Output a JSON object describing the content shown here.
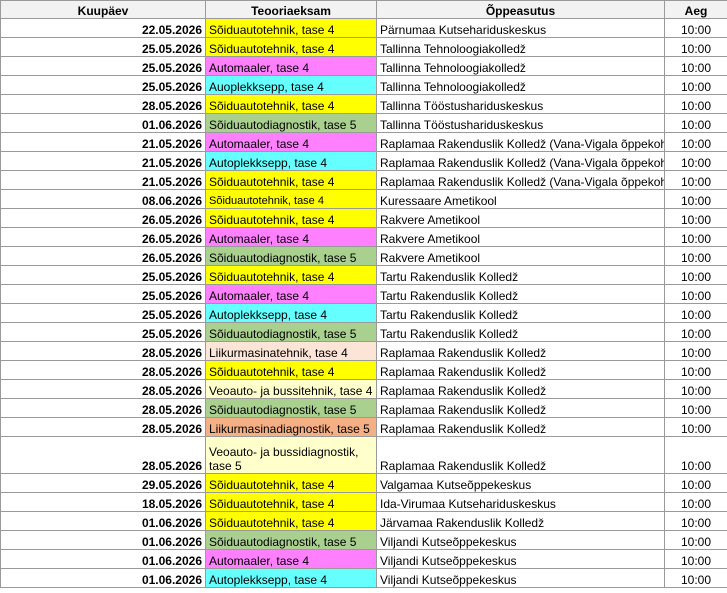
{
  "table": {
    "header": [
      "Kuupäev",
      "Teooriaeksam",
      "Õppeasutus",
      "Aeg"
    ],
    "rows": [
      {
        "date": "22.05.2026",
        "exam": "Sõiduautotehnik, tase 4",
        "color": "#ffff00",
        "school": "Pärnumaa Kutsehariduskeskus",
        "time": "10:00"
      },
      {
        "date": "25.05.2026",
        "exam": "Sõiduautotehnik, tase 4",
        "color": "#ffff00",
        "school": "Tallinna Tehnoloogiakolledž",
        "time": "10:00"
      },
      {
        "date": "25.05.2026",
        "exam": "Automaaler, tase 4",
        "color": "#ff80ff",
        "school": "Tallinna Tehnoloogiakolledž",
        "time": "10:00"
      },
      {
        "date": "25.05.2026",
        "exam": "Auoplekksepp, tase 4",
        "color": "#66ffff",
        "school": "Tallinna Tehnoloogiakolledž",
        "time": "10:00"
      },
      {
        "date": "28.05.2026",
        "exam": "Sõiduautotehnik, tase 4",
        "color": "#ffff00",
        "school": "Tallinna Tööstushariduskeskus",
        "time": "10:00"
      },
      {
        "date": "01.06.2026",
        "exam": "Sõiduautodiagnostik, tase 5",
        "color": "#a9d08e",
        "school": "Tallinna Tööstushariduskeskus",
        "time": "10:00"
      },
      {
        "date": "21.05.2026",
        "exam": "Automaaler, tase 4",
        "color": "#ff80ff",
        "school": "Raplamaa Rakenduslik Kolledž (Vana-Vigala õppekoht",
        "time": "10:00"
      },
      {
        "date": "21.05.2026",
        "exam": "Autoplekksepp, tase 4",
        "color": "#66ffff",
        "school": "Raplamaa Rakenduslik Kolledž (Vana-Vigala õppekoht",
        "time": "10:00"
      },
      {
        "date": "21.05.2026",
        "exam": "Sõiduautotehnik, tase 4",
        "color": "#ffff00",
        "school": "Raplamaa Rakenduslik Kolledž (Vana-Vigala õppekoht",
        "time": "10:00"
      },
      {
        "date": "08.06.2026",
        "exam": "Sõiduautotehnik, tase 4",
        "color": "#ffff00",
        "school": "Kuressaare Ametikool",
        "time": "10:00"
      },
      {
        "date": "26.05.2026",
        "exam": "Sõiduautotehnik, tase 4",
        "color": "#ffff00",
        "school": "Rakvere Ametikool",
        "time": "10:00"
      },
      {
        "date": "26.05.2026",
        "exam": "Automaaler, tase 4",
        "color": "#ff80ff",
        "school": "Rakvere Ametikool",
        "time": "10:00"
      },
      {
        "date": "26.05.2026",
        "exam": "Sõiduautodiagnostik, tase 5",
        "color": "#a9d08e",
        "school": "Rakvere Ametikool",
        "time": "10:00"
      },
      {
        "date": "25.05.2026",
        "exam": "Sõiduautotehnik, tase 4",
        "color": "#ffff00",
        "school": "Tartu Rakenduslik Kolledž",
        "time": "10:00"
      },
      {
        "date": "25.05.2026",
        "exam": "Automaaler, tase 4",
        "color": "#ff80ff",
        "school": "Tartu Rakenduslik Kolledž",
        "time": "10:00"
      },
      {
        "date": "25.05.2026",
        "exam": "Autoplekksepp, tase 4",
        "color": "#66ffff",
        "school": "Tartu Rakenduslik Kolledž",
        "time": "10:00"
      },
      {
        "date": "25.05.2026",
        "exam": "Sõiduautodiagnostik, tase 5",
        "color": "#a9d08e",
        "school": "Tartu Rakenduslik Kolledž",
        "time": "10:00"
      },
      {
        "date": "28.05.2026",
        "exam": "Liikurmasinatehnik, tase 4",
        "color": "#fce4d6",
        "school": "Raplamaa Rakenduslik Kolledž",
        "time": "10:00"
      },
      {
        "date": "28.05.2026",
        "exam": "Sõiduautotehnik, tase 4",
        "color": "#ffff00",
        "school": "Raplamaa Rakenduslik Kolledž",
        "time": "10:00"
      },
      {
        "date": "28.05.2026",
        "exam": "Veoauto- ja bussitehnik, tase 4",
        "color": "#ffffcc",
        "school": "Raplamaa Rakenduslik Kolledž",
        "time": "10:00"
      },
      {
        "date": "28.05.2026",
        "exam": "Sõiduautodiagnostik, tase 5",
        "color": "#a9d08e",
        "school": "Raplamaa Rakenduslik Kolledž",
        "time": "10:00"
      },
      {
        "date": "28.05.2026",
        "exam": "Liikurmasinadiagnostik, tase 5",
        "color": "#f4b084",
        "school": "Raplamaa Rakenduslik Kolledž",
        "time": "10:00"
      },
      {
        "date": "28.05.2026",
        "exam": "Veoauto- ja bussidiagnostik, tase 5",
        "color": "#ffffcc",
        "school": "Raplamaa Rakenduslik Kolledž",
        "time": "10:00"
      },
      {
        "date": "29.05.2026",
        "exam": "Sõiduautotehnik, tase 4",
        "color": "#ffff00",
        "school": "Valgamaa Kutseõppekeskus",
        "time": "10:00"
      },
      {
        "date": "18.05.2026",
        "exam": "Sõiduautotehnik, tase 4",
        "color": "#ffff00",
        "school": "Ida-Virumaa Kutsehariduskeskus",
        "time": "10:00"
      },
      {
        "date": "01.06.2026",
        "exam": "Sõiduautotehnik, tase 4",
        "color": "#ffff00",
        "school": "Järvamaa Rakenduslik Kolledž",
        "time": "10:00"
      },
      {
        "date": "01.06.2026",
        "exam": "Sõiduautodiagnostik, tase 5",
        "color": "#a9d08e",
        "school": "Viljandi Kutseõppekeskus",
        "time": "10:00"
      },
      {
        "date": "01.06.2026",
        "exam": "Automaaler, tase 4",
        "color": "#ff80ff",
        "school": "Viljandi Kutseõppekeskus",
        "time": "10:00"
      },
      {
        "date": "01.06.2026",
        "exam": "Autoplekksepp, tase 4",
        "color": "#66ffff",
        "school": "Viljandi Kutseõppekeskus",
        "time": "10:00"
      }
    ]
  }
}
